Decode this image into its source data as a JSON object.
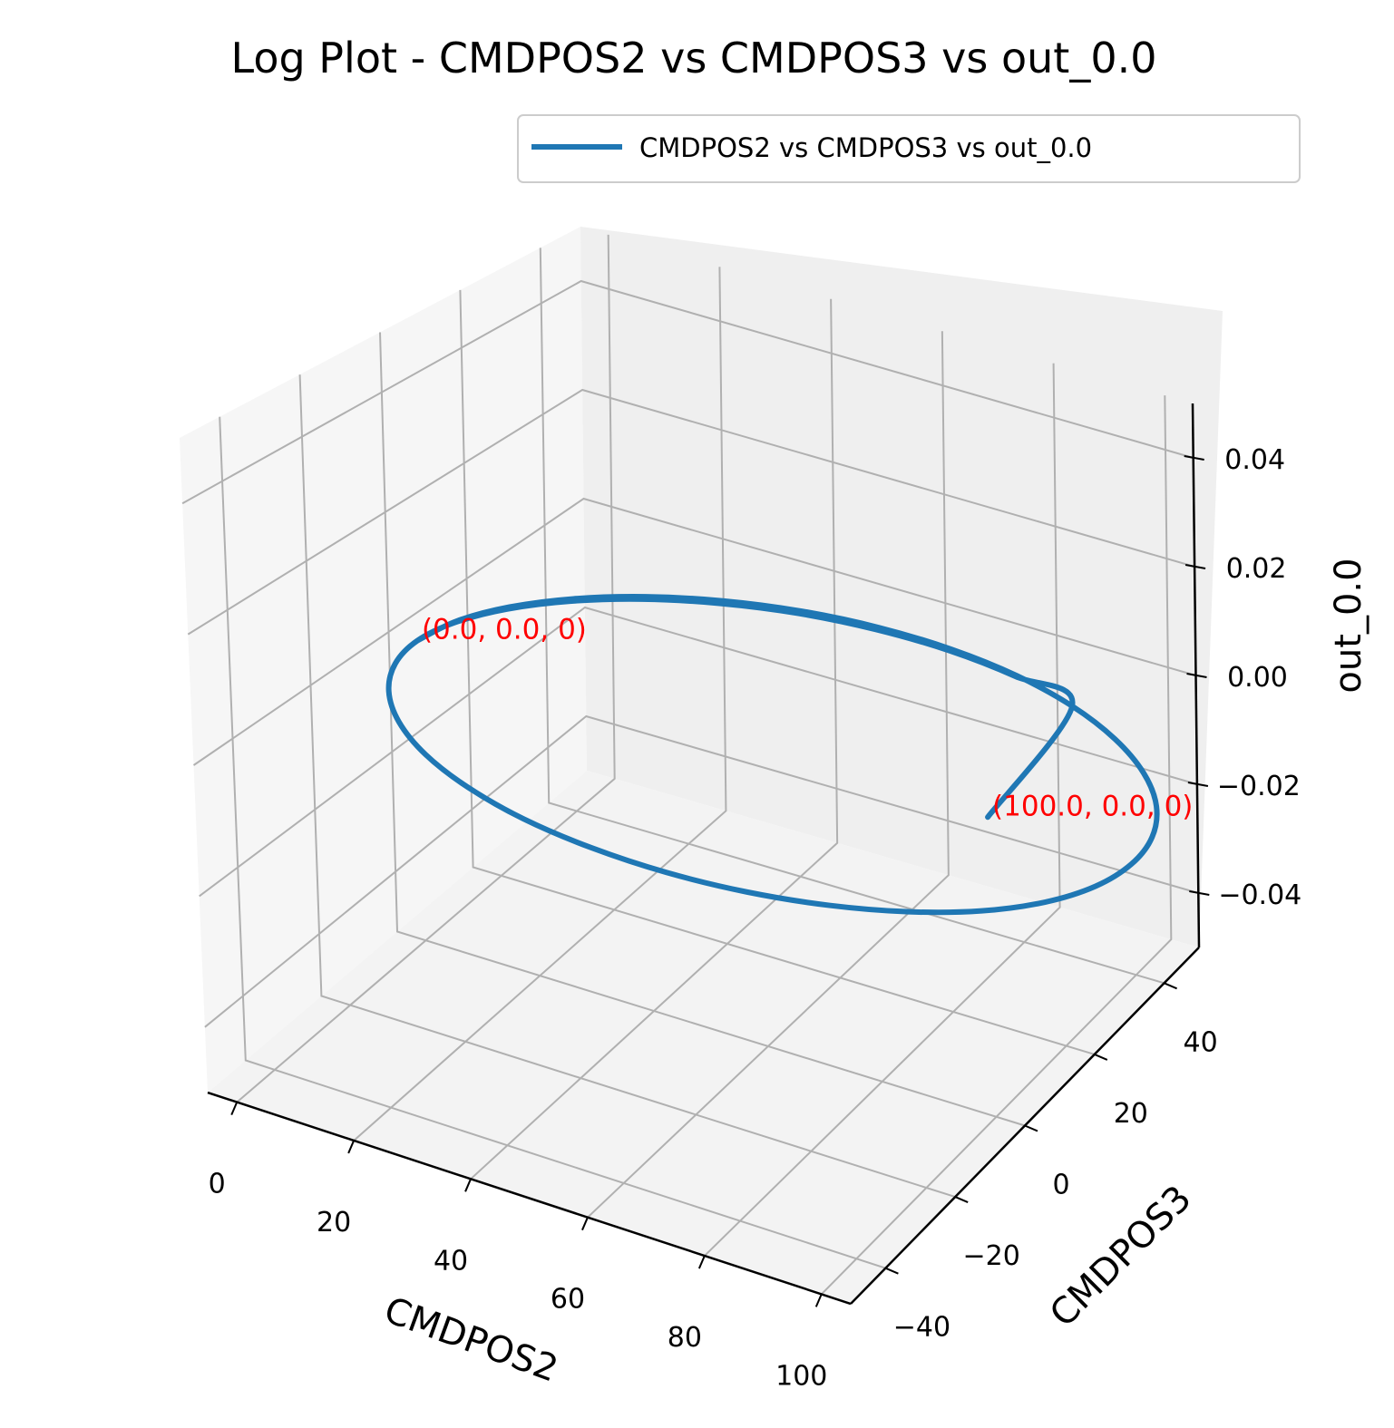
{
  "chart_data": {
    "type": "line3d",
    "title": "Log Plot - CMDPOS2 vs CMDPOS3 vs out_0.0",
    "xlabel": "CMDPOS2",
    "ylabel": "CMDPOS3",
    "zlabel": "out_0.0",
    "xlim": [
      -5,
      105
    ],
    "ylim": [
      -50,
      50
    ],
    "zlim": [
      -0.05,
      0.05
    ],
    "x_ticks": [
      "0",
      "20",
      "40",
      "60",
      "80",
      "100"
    ],
    "y_ticks": [
      "−40",
      "−20",
      "0",
      "20",
      "40"
    ],
    "z_ticks": [
      "−0.04",
      "−0.02",
      "0.00",
      "0.02",
      "0.04"
    ],
    "grid": true,
    "legend_position": "top-right",
    "series": [
      {
        "name": "CMDPOS2 vs CMDPOS3 vs out_0.0",
        "color": "#1f77b4",
        "x": [
          0.0,
          1.34,
          5.34,
          11.8,
          20.47,
          30.92,
          42.74,
          55.44,
          68.49,
          81.37,
          93.52,
          104.36,
          113.38,
          120.11,
          124.22,
          125.56,
          124.22,
          120.11,
          113.38,
          104.36,
          93.52,
          81.37,
          68.49,
          55.44,
          42.74,
          30.92,
          20.47,
          11.8,
          5.34,
          1.34,
          0.0,
          1.34,
          5.34,
          11.8,
          20.47,
          30.92,
          42.74,
          55.44,
          68.49,
          81.37,
          93.52,
          100.0
        ],
        "y": [
          0.0,
          8.2,
          16.0,
          23.1,
          29.2,
          34.0,
          37.3,
          38.9,
          38.8,
          37.0,
          33.5,
          28.5,
          22.3,
          15.2,
          7.4,
          -0.6,
          -8.6,
          -16.2,
          -23.1,
          -28.9,
          -33.5,
          -36.7,
          -38.3,
          -38.2,
          -36.5,
          -33.1,
          -28.3,
          -22.2,
          -15.2,
          -7.6,
          0.0,
          7.6,
          15.2,
          22.2,
          28.3,
          33.1,
          36.5,
          38.2,
          38.3,
          36.7,
          33.5,
          0.0
        ],
        "z": [
          0,
          0,
          0,
          0,
          0,
          0,
          0,
          0,
          0,
          0,
          0,
          0,
          0,
          0,
          0,
          0,
          0,
          0,
          0,
          0,
          0,
          0,
          0,
          0,
          0,
          0,
          0,
          0,
          0,
          0,
          0,
          0,
          0,
          0,
          0,
          0,
          0,
          0,
          0,
          0,
          0,
          0
        ]
      }
    ],
    "annotations": [
      {
        "text": "(0.0, 0.0, 0)",
        "x": 0.0,
        "y": 0.0,
        "z": 0
      },
      {
        "text": "(100.0, 0.0, 0)",
        "x": 100.0,
        "y": 0.0,
        "z": 0
      }
    ]
  }
}
